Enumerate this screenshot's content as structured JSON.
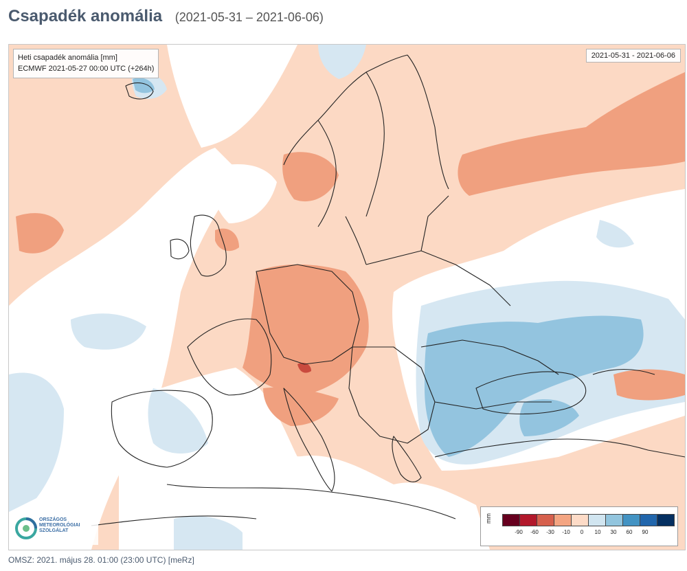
{
  "header": {
    "title": "Csapadék anomália",
    "date_range": "(2021-05-31 – 2021-06-06)"
  },
  "map": {
    "info_line1": "Heti csapadék anomália [mm]",
    "info_line2": "ECMWF 2021-05-27 00:00 UTC (+264h)",
    "date_box": "2021-05-31 - 2021-06-06"
  },
  "logo": {
    "icon": "omsz-logo-icon",
    "line1": "ORSZÁGOS",
    "line2": "METEOROLÓGIAI",
    "line3": "SZOLGÁLAT"
  },
  "legend": {
    "unit": "mm",
    "ticks": [
      "-90",
      "-60",
      "-30",
      "-10",
      "0",
      "10",
      "30",
      "60",
      "90"
    ],
    "colors": [
      "#67001f",
      "#b2182b",
      "#d6604d",
      "#f4a582",
      "#fddbc7",
      "#d1e5f0",
      "#92c5de",
      "#4393c3",
      "#2166ac",
      "#053061"
    ]
  },
  "footer": {
    "text": "OMSZ: 2021. május 28. 01:00 (23:00  UTC)  [meRz]"
  }
}
